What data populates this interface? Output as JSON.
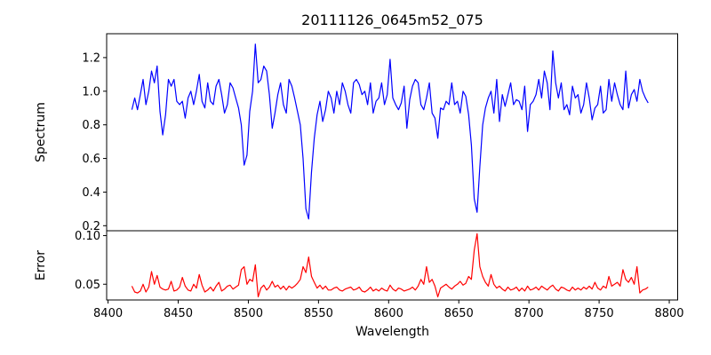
{
  "chart_data": [
    {
      "type": "line",
      "name": "spectrum",
      "title": "20111126_0645m52_075",
      "ylabel": "Spectrum",
      "color": "#0000ff",
      "xlim": [
        8399,
        8806
      ],
      "ylim": [
        0.17,
        1.342
      ],
      "yticks": [
        0.2,
        0.4,
        0.6,
        0.8,
        1.0,
        1.2
      ],
      "ytick_labels": [
        "0.2",
        "0.4",
        "0.6",
        "0.8",
        "1.0",
        "1.2"
      ],
      "xticks": [],
      "xtick_labels": [],
      "grid": false,
      "legend": false,
      "x_start": 8417,
      "x_step": 2,
      "values": [
        0.89,
        0.96,
        0.89,
        0.98,
        1.07,
        0.92,
        1.0,
        1.12,
        1.05,
        1.15,
        0.88,
        0.74,
        0.86,
        1.07,
        1.03,
        1.07,
        0.94,
        0.92,
        0.94,
        0.84,
        0.96,
        1.0,
        0.92,
        1.0,
        1.1,
        0.94,
        0.9,
        1.05,
        0.94,
        0.92,
        1.03,
        1.07,
        0.98,
        0.87,
        0.92,
        1.05,
        1.02,
        0.96,
        0.9,
        0.8,
        0.56,
        0.62,
        0.88,
        1.0,
        1.28,
        1.05,
        1.07,
        1.15,
        1.12,
        0.98,
        0.78,
        0.87,
        0.98,
        1.05,
        0.92,
        0.87,
        1.07,
        1.03,
        0.96,
        0.88,
        0.8,
        0.6,
        0.3,
        0.24,
        0.52,
        0.72,
        0.86,
        0.94,
        0.82,
        0.89,
        1.0,
        0.96,
        0.87,
        1.0,
        0.92,
        1.05,
        1.0,
        0.92,
        0.87,
        1.05,
        1.07,
        1.04,
        0.98,
        1.0,
        0.92,
        1.05,
        0.87,
        0.94,
        0.96,
        1.05,
        0.92,
        0.98,
        1.19,
        0.96,
        0.92,
        0.89,
        0.93,
        1.03,
        0.78,
        0.95,
        1.03,
        1.07,
        1.05,
        0.92,
        0.89,
        0.96,
        1.05,
        0.87,
        0.84,
        0.72,
        0.9,
        0.89,
        0.94,
        0.92,
        1.05,
        0.92,
        0.94,
        0.87,
        1.0,
        0.97,
        0.86,
        0.68,
        0.36,
        0.28,
        0.55,
        0.8,
        0.9,
        0.96,
        1.0,
        0.87,
        1.07,
        0.82,
        0.98,
        0.91,
        0.98,
        1.05,
        0.92,
        0.95,
        0.94,
        0.89,
        1.03,
        0.76,
        0.92,
        0.94,
        0.98,
        1.07,
        0.96,
        1.12,
        1.05,
        0.89,
        1.24,
        1.05,
        0.96,
        1.05,
        0.89,
        0.92,
        0.86,
        1.03,
        0.96,
        0.98,
        0.87,
        0.92,
        1.05,
        0.96,
        0.83,
        0.9,
        0.92,
        1.03,
        0.87,
        0.89,
        1.07,
        0.94,
        1.05,
        0.98,
        0.92,
        0.89,
        1.12,
        0.9,
        0.98,
        1.01,
        0.94,
        1.07,
        1.0,
        0.96,
        0.93
      ]
    },
    {
      "type": "line",
      "name": "error",
      "ylabel": "Error",
      "xlabel": "Wavelength",
      "color": "#ff0000",
      "xlim": [
        8399,
        8806
      ],
      "ylim": [
        0.0338,
        0.105
      ],
      "yticks": [
        0.05,
        0.1
      ],
      "ytick_labels": [
        "0.05",
        "0.10"
      ],
      "xticks": [
        8400,
        8450,
        8500,
        8550,
        8600,
        8650,
        8700,
        8750,
        8800
      ],
      "xtick_labels": [
        "8400",
        "8450",
        "8500",
        "8550",
        "8600",
        "8650",
        "8700",
        "8750",
        "8800"
      ],
      "grid": false,
      "legend": false,
      "x_start": 8417,
      "x_step": 2,
      "values": [
        0.048,
        0.042,
        0.041,
        0.043,
        0.05,
        0.042,
        0.047,
        0.063,
        0.05,
        0.059,
        0.047,
        0.045,
        0.044,
        0.045,
        0.053,
        0.043,
        0.044,
        0.047,
        0.057,
        0.048,
        0.044,
        0.043,
        0.05,
        0.046,
        0.06,
        0.049,
        0.042,
        0.044,
        0.047,
        0.043,
        0.048,
        0.052,
        0.043,
        0.045,
        0.048,
        0.049,
        0.045,
        0.047,
        0.049,
        0.065,
        0.068,
        0.05,
        0.055,
        0.053,
        0.07,
        0.037,
        0.046,
        0.049,
        0.044,
        0.047,
        0.053,
        0.047,
        0.049,
        0.045,
        0.048,
        0.044,
        0.048,
        0.046,
        0.048,
        0.051,
        0.055,
        0.068,
        0.062,
        0.078,
        0.058,
        0.052,
        0.046,
        0.049,
        0.045,
        0.048,
        0.044,
        0.044,
        0.046,
        0.047,
        0.044,
        0.043,
        0.045,
        0.046,
        0.047,
        0.044,
        0.045,
        0.047,
        0.043,
        0.042,
        0.044,
        0.047,
        0.043,
        0.045,
        0.043,
        0.046,
        0.044,
        0.043,
        0.049,
        0.045,
        0.043,
        0.046,
        0.045,
        0.043,
        0.044,
        0.045,
        0.047,
        0.044,
        0.048,
        0.055,
        0.05,
        0.068,
        0.052,
        0.055,
        0.048,
        0.037,
        0.046,
        0.048,
        0.05,
        0.047,
        0.045,
        0.048,
        0.05,
        0.053,
        0.049,
        0.051,
        0.058,
        0.055,
        0.085,
        0.102,
        0.068,
        0.058,
        0.052,
        0.048,
        0.06,
        0.05,
        0.046,
        0.048,
        0.045,
        0.043,
        0.047,
        0.044,
        0.045,
        0.047,
        0.043,
        0.046,
        0.043,
        0.048,
        0.044,
        0.045,
        0.047,
        0.044,
        0.048,
        0.046,
        0.044,
        0.047,
        0.049,
        0.045,
        0.043,
        0.047,
        0.046,
        0.044,
        0.043,
        0.047,
        0.044,
        0.046,
        0.044,
        0.047,
        0.045,
        0.048,
        0.045,
        0.052,
        0.046,
        0.044,
        0.048,
        0.046,
        0.058,
        0.048,
        0.05,
        0.052,
        0.048,
        0.065,
        0.055,
        0.052,
        0.057,
        0.05,
        0.068,
        0.041,
        0.044,
        0.045,
        0.047
      ]
    }
  ]
}
